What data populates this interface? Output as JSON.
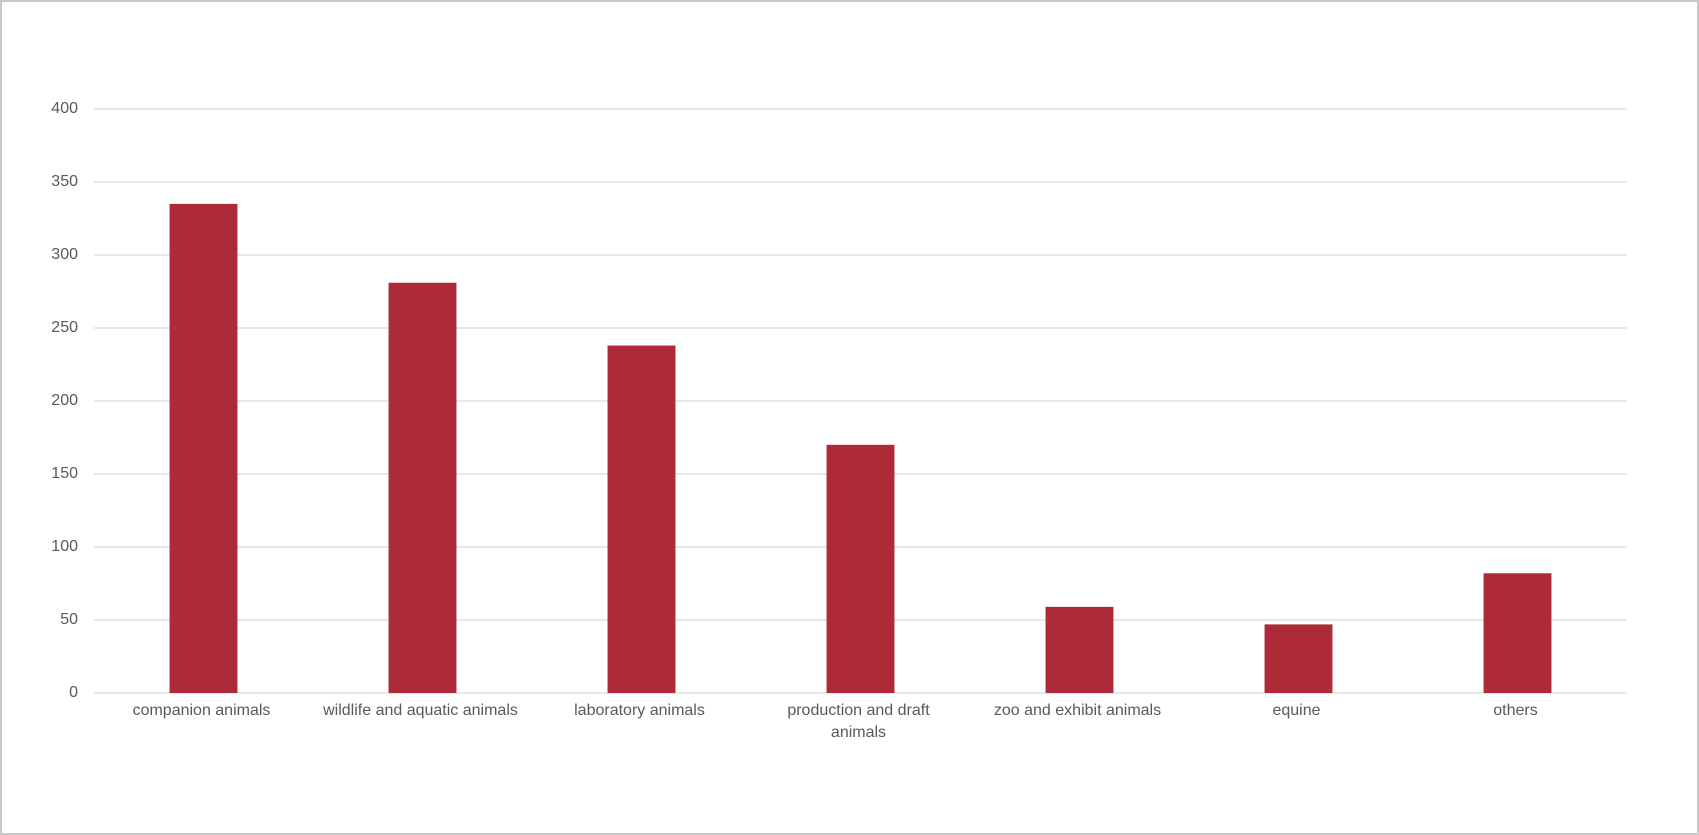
{
  "chart_data": {
    "type": "bar",
    "categories": [
      "companion animals",
      "wildlife and aquatic animals",
      "laboratory animals",
      "production and draft animals",
      "zoo and exhibit animals",
      "equine",
      "others"
    ],
    "values": [
      335,
      281,
      238,
      170,
      59,
      47,
      82
    ],
    "color": "#ad2b38",
    "ylim": [
      0,
      400
    ],
    "yticks": [
      0,
      50,
      100,
      150,
      200,
      250,
      300,
      350,
      400
    ],
    "grid": true
  }
}
